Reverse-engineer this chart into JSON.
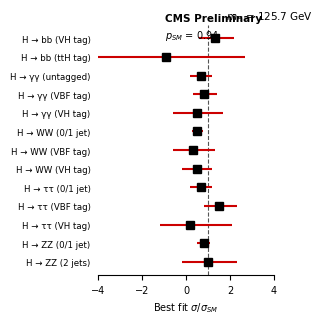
{
  "title_left": "CMS Preliminary",
  "title_right": "m_{H} = 125.7 GeV",
  "subtitle": "p_{SM} = 0.94",
  "xlabel": "Best fit σ/σ_{SM}",
  "xlim": [
    -4,
    4
  ],
  "dashed_line_x": 1.0,
  "categories": [
    "H → bb (VH tag)",
    "H → bb (ttH tag)",
    "H → γγ (untagged)",
    "H → γγ (VBF tag)",
    "H → γγ (VH tag)",
    "H → WW (0/1 jet)",
    "H → WW (VBF tag)",
    "H → WW (VH tag)",
    "H → ττ (0/1 jet)",
    "H → ττ (VBF tag)",
    "H → ττ (VH tag)",
    "H → ZZ (0/1 jet)",
    "H → ZZ (2 jets)"
  ],
  "central_values": [
    1.3,
    -0.9,
    0.7,
    0.8,
    0.5,
    0.5,
    0.3,
    0.5,
    0.7,
    1.5,
    0.2,
    0.8,
    1.0
  ],
  "err_low": [
    0.7,
    3.3,
    0.5,
    0.5,
    1.1,
    0.25,
    0.9,
    0.7,
    0.5,
    0.7,
    1.4,
    0.3,
    1.2
  ],
  "err_high": [
    0.9,
    3.6,
    0.5,
    0.6,
    1.2,
    0.25,
    1.0,
    0.7,
    0.5,
    0.8,
    1.9,
    0.3,
    1.3
  ],
  "marker_color": "black",
  "line_color": "#cc0000",
  "dashed_color": "#555555",
  "marker_size": 5.5,
  "line_width": 1.5,
  "bg_color": "#ffffff",
  "label_fontsize": 6.2,
  "header_fontsize": 7.5,
  "subtitle_fontsize": 7.0,
  "xlabel_fontsize": 7.0,
  "xtick_fontsize": 7.0
}
